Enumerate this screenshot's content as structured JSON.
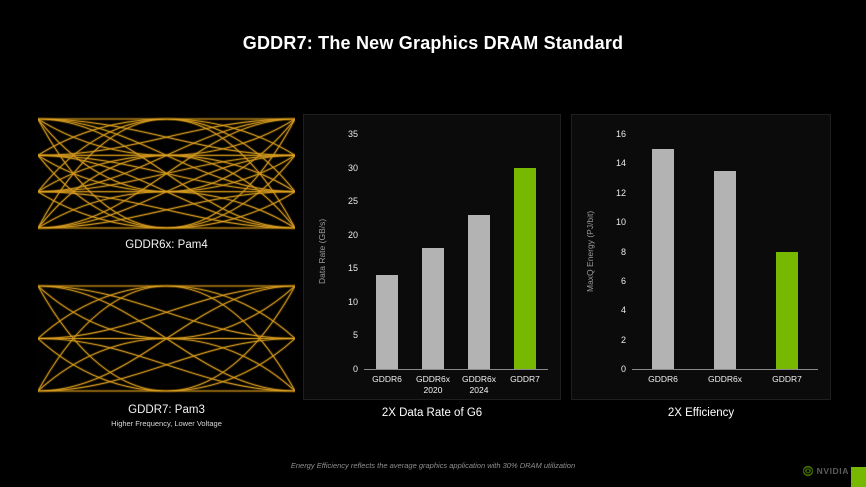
{
  "slide": {
    "title": "GDDR7: The New Graphics DRAM Standard"
  },
  "eye_diagrams": [
    {
      "label": "GDDR6x: Pam4",
      "sublabel": "",
      "levels": 4,
      "trace_color": "#d79c21"
    },
    {
      "label": "GDDR7: Pam3",
      "sublabel": "Higher Frequency, Lower Voltage",
      "levels": 3,
      "trace_color": "#d79c21"
    }
  ],
  "chart_data": [
    {
      "type": "bar",
      "title": "2X Data Rate of G6",
      "ylabel": "Data Rate (GB/s)",
      "categories": [
        "GDDR6",
        "GDDR6x\n2020",
        "GDDR6x\n2024",
        "GDDR7"
      ],
      "values": [
        14,
        18,
        23,
        30
      ],
      "ylim": [
        0,
        35
      ],
      "yticks": [
        0,
        5,
        10,
        15,
        20,
        25,
        30,
        35
      ],
      "bar_colors": [
        "#b3b3b3",
        "#b3b3b3",
        "#b3b3b3",
        "#76b900"
      ],
      "grid": false,
      "legend": "none"
    },
    {
      "type": "bar",
      "title": "2X Efficiency",
      "ylabel": "MaxQ Energy (PJ/bit)",
      "categories": [
        "GDDR6",
        "GDDR6x",
        "GDDR7"
      ],
      "values": [
        15,
        13.5,
        8
      ],
      "ylim": [
        0,
        16
      ],
      "yticks": [
        0,
        2,
        4,
        6,
        8,
        10,
        12,
        14,
        16
      ],
      "bar_colors": [
        "#b3b3b3",
        "#b3b3b3",
        "#76b900"
      ],
      "grid": false,
      "legend": "none"
    }
  ],
  "footer": {
    "note": "Energy Efficiency reflects the average graphics application with 30% DRAM utilization",
    "brand": "NVIDIA"
  },
  "colors": {
    "accent_green": "#76b900",
    "bar_gray": "#b3b3b3",
    "eye_trace": "#d79c21"
  }
}
